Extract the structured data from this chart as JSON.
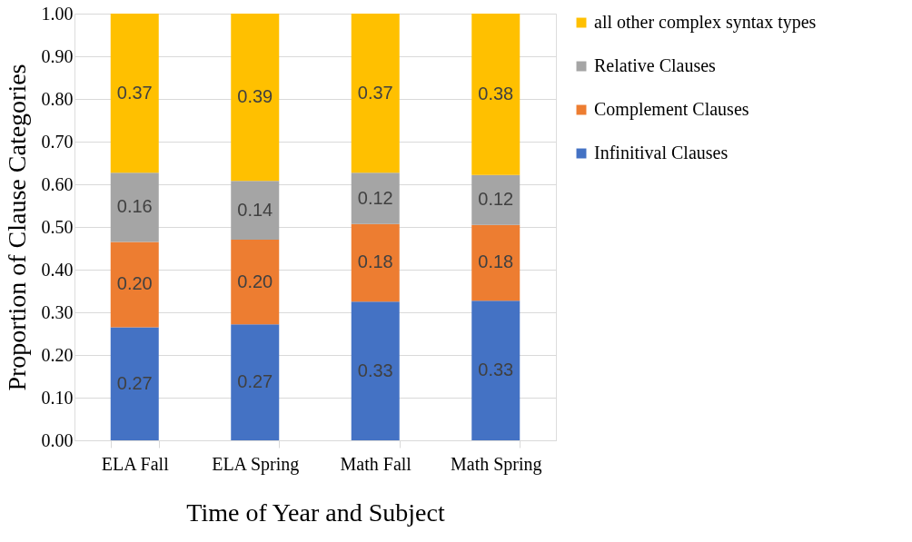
{
  "chart_data": {
    "type": "bar",
    "stacked": true,
    "xlabel": "Time of Year and Subject",
    "ylabel": "Proportion of Clause Categories",
    "categories": [
      "ELA Fall",
      "ELA Spring",
      "Math Fall",
      "Math Spring"
    ],
    "series": [
      {
        "name": "Infinitival Clauses",
        "color": "#4472c4",
        "values": [
          0.265,
          0.272,
          0.325,
          0.327
        ],
        "value_labels": [
          "0.27",
          "0.27",
          "0.33",
          "0.33"
        ]
      },
      {
        "name": "Complement Clauses",
        "color": "#ed7d31",
        "values": [
          0.2,
          0.198,
          0.182,
          0.178
        ],
        "value_labels": [
          "0.20",
          "0.20",
          "0.18",
          "0.18"
        ]
      },
      {
        "name": "Relative Clauses",
        "color": "#a5a5a5",
        "values": [
          0.162,
          0.138,
          0.12,
          0.117
        ],
        "value_labels": [
          "0.16",
          "0.14",
          "0.12",
          "0.12"
        ]
      },
      {
        "name": "all other complex syntax types",
        "color": "#ffc000",
        "values": [
          0.373,
          0.392,
          0.373,
          0.378
        ],
        "value_labels": [
          "0.37",
          "0.39",
          "0.37",
          "0.38"
        ]
      }
    ],
    "ylim": [
      0,
      1
    ],
    "yticks": [
      {
        "value": 0,
        "label": "0.00"
      },
      {
        "value": 0.1,
        "label": "0.10"
      },
      {
        "value": 0.2,
        "label": "0.20"
      },
      {
        "value": 0.3,
        "label": "0.30"
      },
      {
        "value": 0.4,
        "label": "0.40"
      },
      {
        "value": 0.5,
        "label": "0.50"
      },
      {
        "value": 0.6,
        "label": "0.60"
      },
      {
        "value": 0.7,
        "label": "0.70"
      },
      {
        "value": 0.8,
        "label": "0.80"
      },
      {
        "value": 0.9,
        "label": "0.90"
      },
      {
        "value": 1,
        "label": "1.00"
      }
    ],
    "grid": "y",
    "legend": "right"
  }
}
